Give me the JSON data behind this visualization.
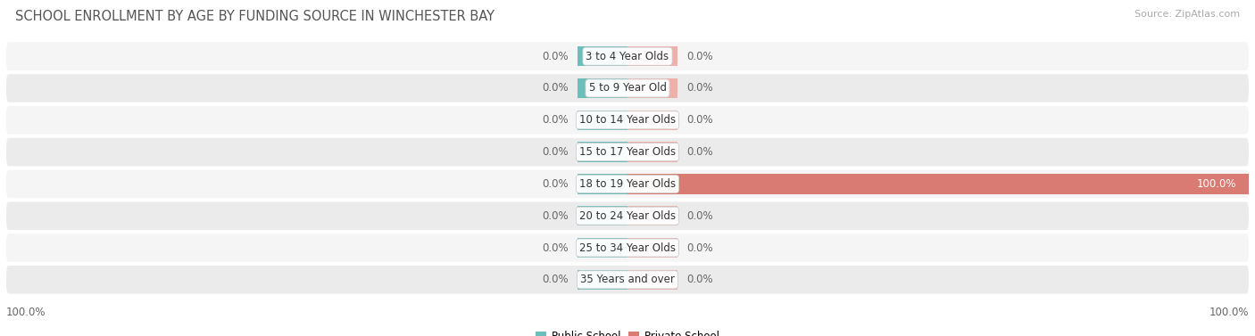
{
  "title": "SCHOOL ENROLLMENT BY AGE BY FUNDING SOURCE IN WINCHESTER BAY",
  "source": "Source: ZipAtlas.com",
  "categories": [
    "3 to 4 Year Olds",
    "5 to 9 Year Old",
    "10 to 14 Year Olds",
    "15 to 17 Year Olds",
    "18 to 19 Year Olds",
    "20 to 24 Year Olds",
    "25 to 34 Year Olds",
    "35 Years and over"
  ],
  "public_values": [
    0.0,
    0.0,
    0.0,
    0.0,
    0.0,
    0.0,
    0.0,
    0.0
  ],
  "private_values": [
    0.0,
    0.0,
    0.0,
    0.0,
    100.0,
    0.0,
    0.0,
    0.0
  ],
  "public_color": "#6bbfbb",
  "private_color_full": "#d97b72",
  "private_color_dim": "#f0b0aa",
  "row_color_light": "#f5f5f5",
  "row_color_dark": "#ebebeb",
  "x_min": -100,
  "x_max": 100,
  "stub_size": 8,
  "bar_height": 0.62,
  "title_fontsize": 10.5,
  "label_fontsize": 8.5,
  "tick_fontsize": 8.5,
  "source_fontsize": 8,
  "corner_left_label": "100.0%",
  "corner_right_label": "100.0%"
}
